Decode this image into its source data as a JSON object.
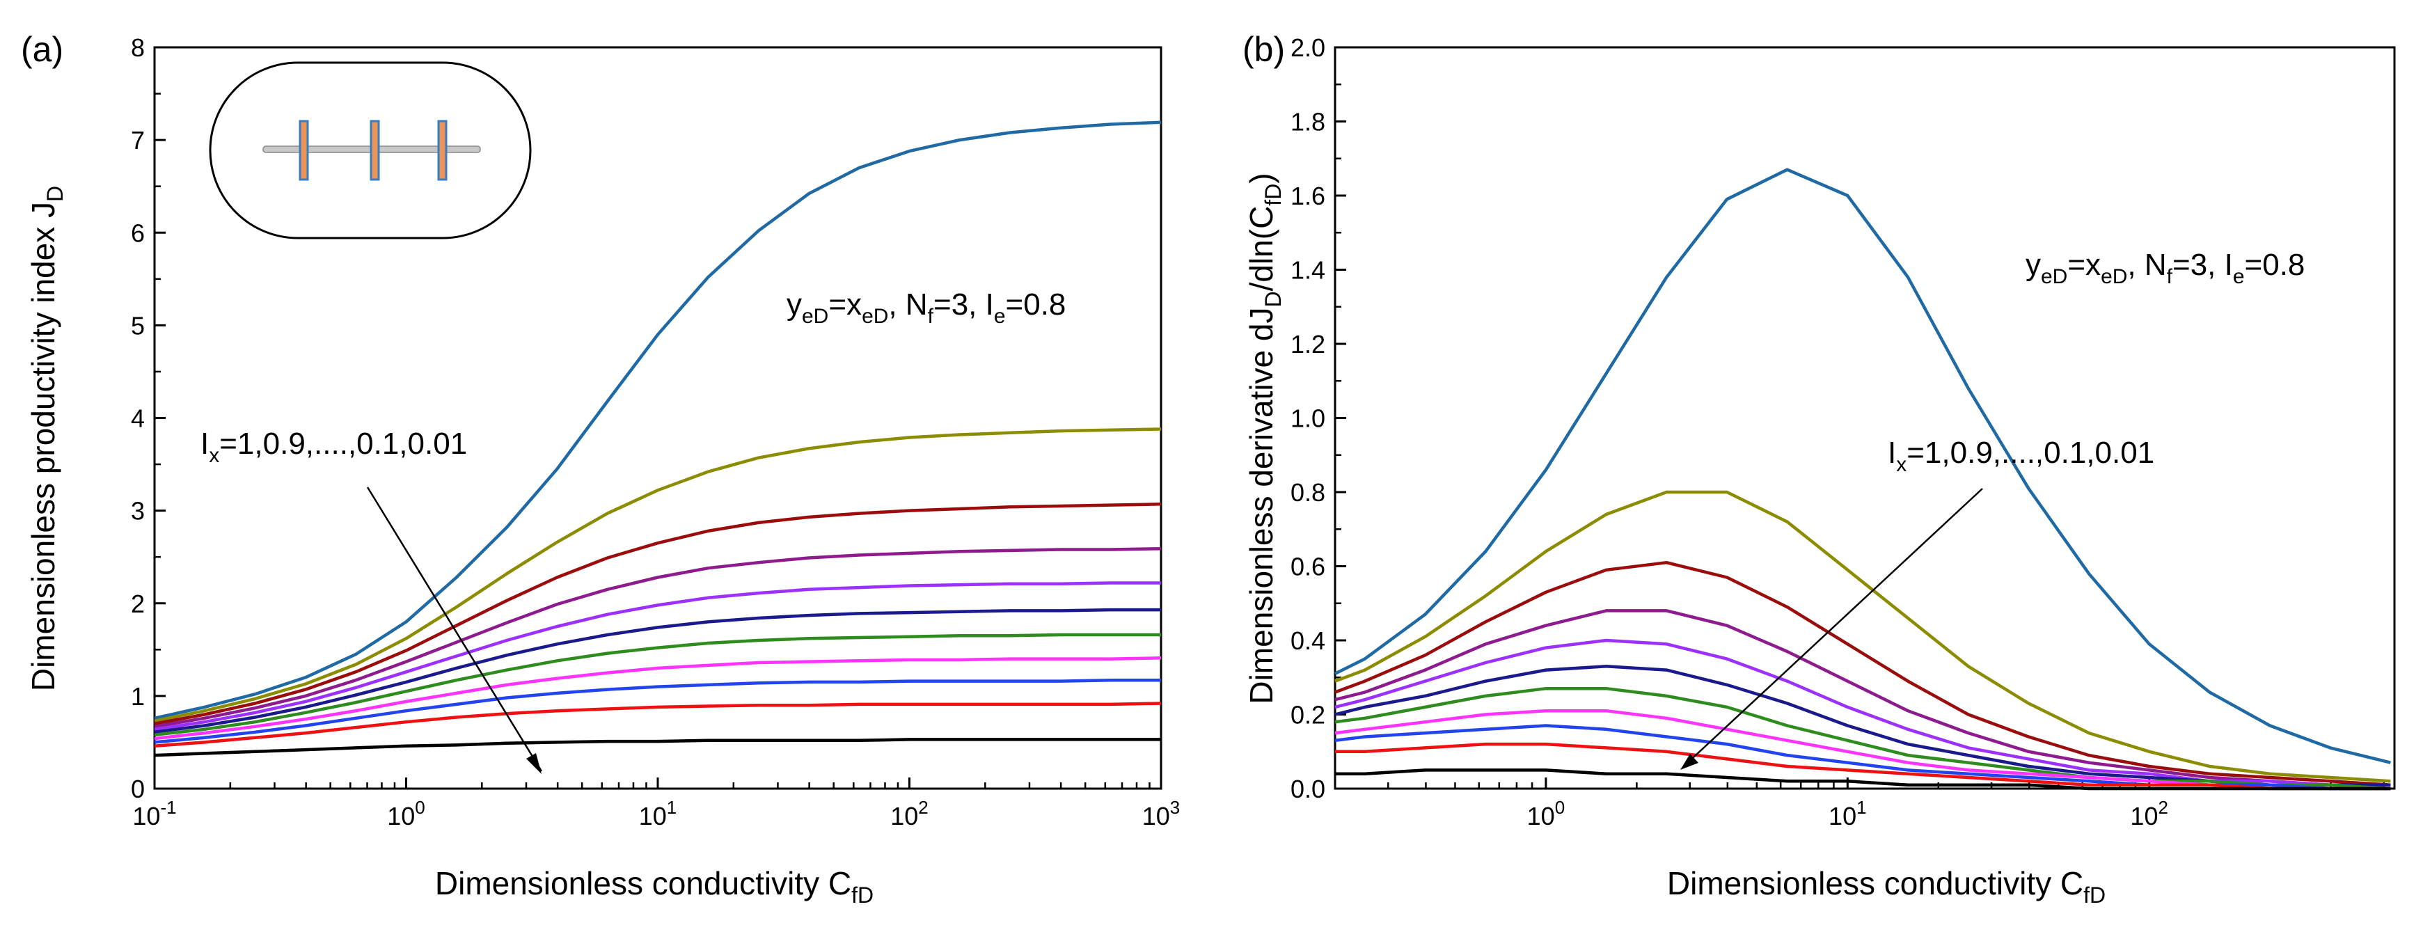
{
  "figure": {
    "series_colors": [
      "#1f6aa5",
      "#8c8c00",
      "#9b0d0d",
      "#8e1b8e",
      "#9b30ff",
      "#1a1a8c",
      "#2e8b1e",
      "#ff33ff",
      "#2244ee",
      "#ee1111",
      "#000000"
    ],
    "inset_colors": {
      "fracture_fill": "#e8955a",
      "fracture_edge": "#3a7abf",
      "well": "#c8c8c8"
    }
  },
  "chart_data": [
    {
      "id": "a",
      "panel_label": "(a)",
      "type": "line",
      "xscale": "log",
      "xlim": [
        0.1,
        1000
      ],
      "ylim": [
        0,
        8
      ],
      "xticks": [
        {
          "value": 0.1,
          "base": "10",
          "exp": "-1"
        },
        {
          "value": 1,
          "base": "10",
          "exp": "0"
        },
        {
          "value": 10,
          "base": "10",
          "exp": "1"
        },
        {
          "value": 100,
          "base": "10",
          "exp": "2"
        },
        {
          "value": 1000,
          "base": "10",
          "exp": "3"
        }
      ],
      "yticks": [
        "0",
        "1",
        "2",
        "3",
        "4",
        "5",
        "6",
        "7",
        "8"
      ],
      "ytick_values": [
        0,
        1,
        2,
        3,
        4,
        5,
        6,
        7,
        8
      ],
      "xlabel": {
        "main": "Dimensionless conductivity C",
        "sub": "fD"
      },
      "ylabel": {
        "main": "Dimensionless productivity index J",
        "sub": "D"
      },
      "annotation": {
        "main": "y",
        "sub1": "eD",
        "mid": "=x",
        "sub2": "eD",
        "mid2": ", N",
        "sub3": "f",
        "mid3": "=3, I",
        "sub4": "e",
        "tail": "=0.8"
      },
      "arrow_label": {
        "pre": "I",
        "sub": "x",
        "tail": "=1,0.9,....,0.1,0.01"
      },
      "x": [
        0.1,
        0.158,
        0.251,
        0.398,
        0.631,
        1,
        1.585,
        2.512,
        3.981,
        6.31,
        10,
        15.85,
        25.12,
        39.81,
        63.1,
        100,
        158.5,
        251.2,
        398.1,
        631,
        1000
      ],
      "series": [
        {
          "name": "I_x=1",
          "values": [
            0.76,
            0.88,
            1.02,
            1.2,
            1.45,
            1.8,
            2.28,
            2.82,
            3.45,
            4.18,
            4.9,
            5.52,
            6.02,
            6.42,
            6.7,
            6.88,
            7.0,
            7.08,
            7.13,
            7.17,
            7.19
          ]
        },
        {
          "name": "I_x=0.9",
          "values": [
            0.73,
            0.84,
            0.97,
            1.13,
            1.34,
            1.62,
            1.96,
            2.32,
            2.66,
            2.97,
            3.22,
            3.42,
            3.57,
            3.67,
            3.74,
            3.79,
            3.82,
            3.84,
            3.86,
            3.87,
            3.88
          ]
        },
        {
          "name": "I_x=0.8",
          "values": [
            0.7,
            0.8,
            0.92,
            1.07,
            1.26,
            1.49,
            1.76,
            2.03,
            2.28,
            2.49,
            2.65,
            2.78,
            2.87,
            2.93,
            2.97,
            3.0,
            3.02,
            3.04,
            3.05,
            3.06,
            3.07
          ]
        },
        {
          "name": "I_x=0.7",
          "values": [
            0.67,
            0.76,
            0.87,
            1.0,
            1.17,
            1.37,
            1.58,
            1.79,
            1.99,
            2.15,
            2.28,
            2.38,
            2.44,
            2.49,
            2.52,
            2.54,
            2.56,
            2.57,
            2.58,
            2.58,
            2.59
          ]
        },
        {
          "name": "I_x=0.6",
          "values": [
            0.64,
            0.72,
            0.82,
            0.94,
            1.09,
            1.26,
            1.43,
            1.6,
            1.75,
            1.88,
            1.98,
            2.06,
            2.11,
            2.15,
            2.17,
            2.19,
            2.2,
            2.21,
            2.21,
            2.22,
            2.22
          ]
        },
        {
          "name": "I_x=0.5",
          "values": [
            0.61,
            0.68,
            0.77,
            0.88,
            1.01,
            1.15,
            1.3,
            1.44,
            1.56,
            1.66,
            1.74,
            1.8,
            1.84,
            1.87,
            1.89,
            1.9,
            1.91,
            1.92,
            1.92,
            1.93,
            1.93
          ]
        },
        {
          "name": "I_x=0.4",
          "values": [
            0.58,
            0.64,
            0.72,
            0.82,
            0.93,
            1.05,
            1.17,
            1.28,
            1.38,
            1.46,
            1.52,
            1.57,
            1.6,
            1.62,
            1.63,
            1.64,
            1.65,
            1.65,
            1.66,
            1.66,
            1.66
          ]
        },
        {
          "name": "I_x=0.3",
          "values": [
            0.54,
            0.6,
            0.67,
            0.75,
            0.84,
            0.94,
            1.03,
            1.12,
            1.19,
            1.25,
            1.3,
            1.33,
            1.36,
            1.37,
            1.38,
            1.39,
            1.39,
            1.4,
            1.4,
            1.4,
            1.41
          ]
        },
        {
          "name": "I_x=0.2",
          "values": [
            0.5,
            0.55,
            0.61,
            0.68,
            0.76,
            0.84,
            0.91,
            0.98,
            1.03,
            1.07,
            1.1,
            1.12,
            1.14,
            1.15,
            1.15,
            1.16,
            1.16,
            1.16,
            1.16,
            1.17,
            1.17
          ]
        },
        {
          "name": "I_x=0.1",
          "values": [
            0.46,
            0.5,
            0.55,
            0.6,
            0.66,
            0.72,
            0.77,
            0.81,
            0.84,
            0.86,
            0.88,
            0.89,
            0.9,
            0.9,
            0.91,
            0.91,
            0.91,
            0.91,
            0.91,
            0.91,
            0.92
          ]
        },
        {
          "name": "I_x=0.01",
          "values": [
            0.36,
            0.38,
            0.4,
            0.42,
            0.44,
            0.46,
            0.47,
            0.49,
            0.5,
            0.51,
            0.51,
            0.52,
            0.52,
            0.52,
            0.52,
            0.53,
            0.53,
            0.53,
            0.53,
            0.53,
            0.53
          ]
        }
      ]
    },
    {
      "id": "b",
      "panel_label": "(b)",
      "type": "line",
      "xscale": "log",
      "xlim": [
        0.2,
        650
      ],
      "ylim": [
        0,
        2.0
      ],
      "xticks": [
        {
          "value": 1,
          "base": "10",
          "exp": "0"
        },
        {
          "value": 10,
          "base": "10",
          "exp": "1"
        },
        {
          "value": 100,
          "base": "10",
          "exp": "2"
        }
      ],
      "yticks": [
        "0.0",
        "0.2",
        "0.4",
        "0.6",
        "0.8",
        "1.0",
        "1.2",
        "1.4",
        "1.6",
        "1.8",
        "2.0"
      ],
      "ytick_values": [
        0,
        0.2,
        0.4,
        0.6,
        0.8,
        1.0,
        1.2,
        1.4,
        1.6,
        1.8,
        2.0
      ],
      "xlabel": {
        "main": "Dimensionless conductivity C",
        "sub": "fD"
      },
      "ylabel": {
        "main": "Dimensionless derivative dJ",
        "sub": "D",
        "mid": "/dln(C",
        "sub2": "fD",
        "tail": ")"
      },
      "annotation": {
        "main": "y",
        "sub1": "eD",
        "mid": "=x",
        "sub2": "eD",
        "mid2": ", N",
        "sub3": "f",
        "mid3": "=3, I",
        "sub4": "e",
        "tail": "=0.8"
      },
      "arrow_label": {
        "pre": "I",
        "sub": "x",
        "tail": "=1,0.9,....,0.1,0.01"
      },
      "x": [
        0.2,
        0.251,
        0.398,
        0.631,
        1,
        1.585,
        2.512,
        3.981,
        6.31,
        10,
        15.85,
        25.12,
        39.81,
        63.1,
        100,
        158.5,
        251.2,
        398.1,
        631
      ],
      "series": [
        {
          "name": "I_x=1",
          "values": [
            0.31,
            0.35,
            0.47,
            0.64,
            0.86,
            1.12,
            1.38,
            1.59,
            1.67,
            1.6,
            1.38,
            1.08,
            0.81,
            0.58,
            0.39,
            0.26,
            0.17,
            0.11,
            0.07
          ]
        },
        {
          "name": "I_x=0.9",
          "values": [
            0.29,
            0.32,
            0.41,
            0.52,
            0.64,
            0.74,
            0.8,
            0.8,
            0.72,
            0.59,
            0.46,
            0.33,
            0.23,
            0.15,
            0.1,
            0.06,
            0.04,
            0.03,
            0.02
          ]
        },
        {
          "name": "I_x=0.8",
          "values": [
            0.26,
            0.29,
            0.36,
            0.45,
            0.53,
            0.59,
            0.61,
            0.57,
            0.49,
            0.39,
            0.29,
            0.2,
            0.14,
            0.09,
            0.06,
            0.04,
            0.03,
            0.02,
            0.01
          ]
        },
        {
          "name": "I_x=0.7",
          "values": [
            0.24,
            0.26,
            0.32,
            0.39,
            0.44,
            0.48,
            0.48,
            0.44,
            0.37,
            0.29,
            0.21,
            0.15,
            0.1,
            0.07,
            0.05,
            0.03,
            0.02,
            0.01,
            0.01
          ]
        },
        {
          "name": "I_x=0.6",
          "values": [
            0.22,
            0.24,
            0.29,
            0.34,
            0.38,
            0.4,
            0.39,
            0.35,
            0.29,
            0.22,
            0.16,
            0.11,
            0.08,
            0.05,
            0.04,
            0.02,
            0.02,
            0.01,
            0.01
          ]
        },
        {
          "name": "I_x=0.5",
          "values": [
            0.2,
            0.22,
            0.25,
            0.29,
            0.32,
            0.33,
            0.32,
            0.28,
            0.23,
            0.17,
            0.12,
            0.09,
            0.06,
            0.04,
            0.03,
            0.02,
            0.01,
            0.01,
            0.01
          ]
        },
        {
          "name": "I_x=0.4",
          "values": [
            0.18,
            0.19,
            0.22,
            0.25,
            0.27,
            0.27,
            0.25,
            0.22,
            0.17,
            0.13,
            0.09,
            0.07,
            0.05,
            0.03,
            0.02,
            0.02,
            0.01,
            0.01,
            0.0
          ]
        },
        {
          "name": "I_x=0.3",
          "values": [
            0.15,
            0.16,
            0.18,
            0.2,
            0.21,
            0.21,
            0.19,
            0.16,
            0.13,
            0.1,
            0.07,
            0.05,
            0.04,
            0.03,
            0.02,
            0.01,
            0.01,
            0.0,
            0.0
          ]
        },
        {
          "name": "I_x=0.2",
          "values": [
            0.13,
            0.14,
            0.15,
            0.16,
            0.17,
            0.16,
            0.14,
            0.12,
            0.09,
            0.07,
            0.05,
            0.04,
            0.03,
            0.02,
            0.01,
            0.01,
            0.01,
            0.0,
            0.0
          ]
        },
        {
          "name": "I_x=0.1",
          "values": [
            0.1,
            0.1,
            0.11,
            0.12,
            0.12,
            0.11,
            0.1,
            0.08,
            0.06,
            0.05,
            0.04,
            0.03,
            0.02,
            0.01,
            0.01,
            0.01,
            0.0,
            0.0,
            0.0
          ]
        },
        {
          "name": "I_x=0.01",
          "values": [
            0.04,
            0.04,
            0.05,
            0.05,
            0.05,
            0.04,
            0.04,
            0.03,
            0.02,
            0.02,
            0.01,
            0.01,
            0.01,
            0.0,
            0.0,
            0.0,
            0.0,
            0.0,
            0.0
          ]
        }
      ]
    }
  ]
}
